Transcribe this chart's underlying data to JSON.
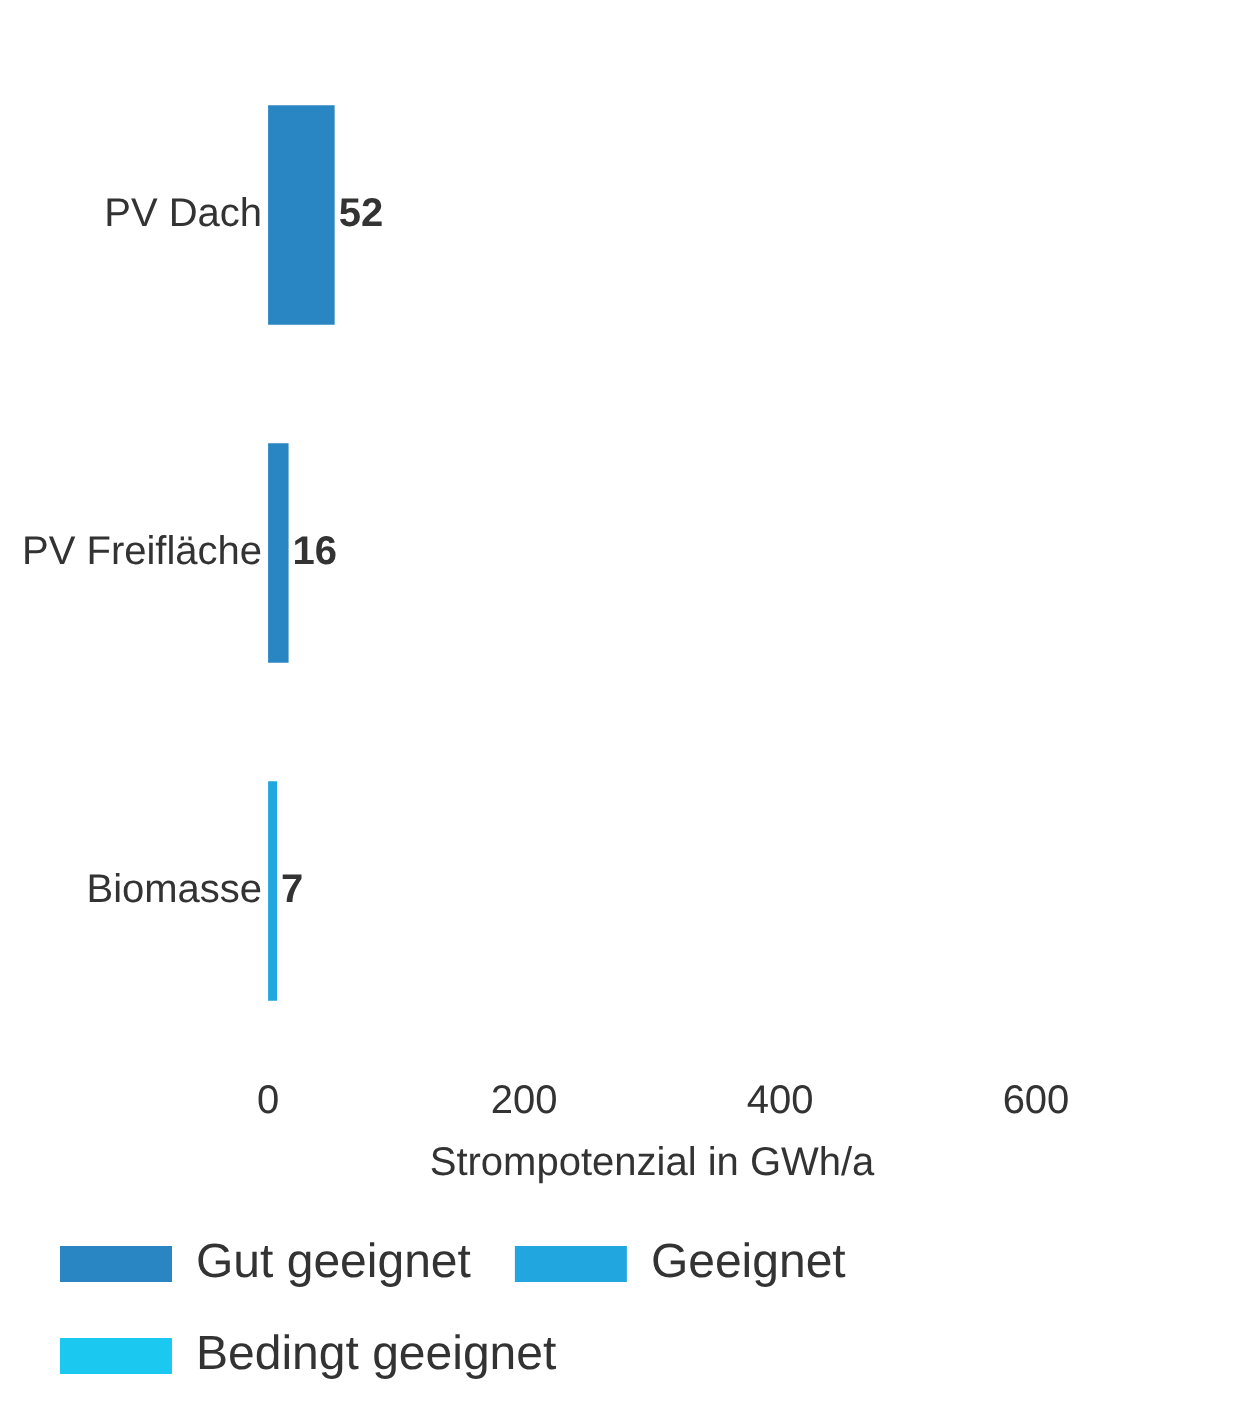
{
  "chart_data": {
    "type": "bar",
    "orientation": "horizontal",
    "stacked": true,
    "categories": [
      "PV Dach",
      "PV Freifläche",
      "Biomasse"
    ],
    "series": [
      {
        "name": "Gut geeignet",
        "color": "#2a86c2",
        "values": [
          52,
          16,
          0
        ]
      },
      {
        "name": "Geeignet",
        "color": "#22a6df",
        "values": [
          0,
          0,
          7
        ]
      },
      {
        "name": "Bedingt geeignet",
        "color": "#1bc8f0",
        "values": [
          0,
          0,
          0
        ]
      }
    ],
    "totals": [
      "52",
      "16",
      "7"
    ],
    "xlabel": "Strompotenzial in GWh/a",
    "xlim": [
      0,
      600
    ],
    "xticks": [
      0,
      200,
      400,
      600
    ],
    "grid": false,
    "legend": "bottom"
  }
}
